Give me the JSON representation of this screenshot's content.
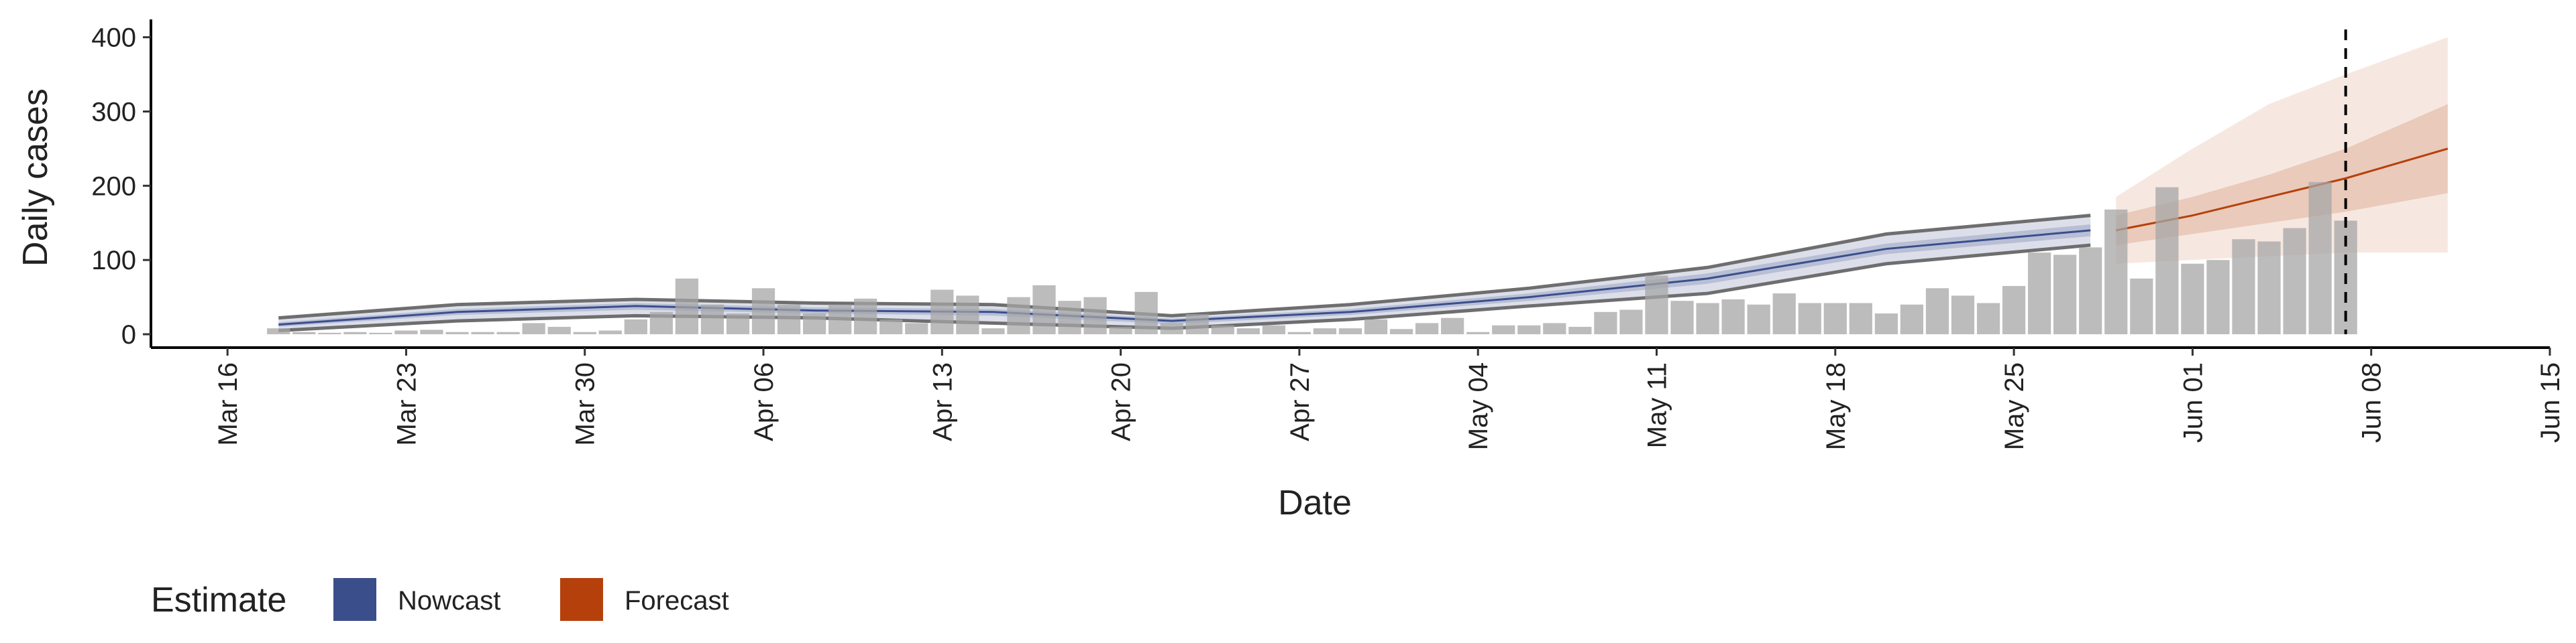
{
  "chart_data": {
    "type": "bar",
    "x_label": "Date",
    "y_label": "Daily cases",
    "legend_title": "Estimate",
    "color": "#a6a6a6",
    "x": [
      "03-18",
      "03-19",
      "03-20",
      "03-21",
      "03-22",
      "03-23",
      "03-24",
      "03-25",
      "03-26",
      "03-27",
      "03-28",
      "03-29",
      "03-30",
      "03-31",
      "04-01",
      "04-02",
      "04-03",
      "04-04",
      "04-05",
      "04-06",
      "04-07",
      "04-08",
      "04-09",
      "04-10",
      "04-11",
      "04-12",
      "04-13",
      "04-14",
      "04-15",
      "04-16",
      "04-17",
      "04-18",
      "04-19",
      "04-20",
      "04-21",
      "04-22",
      "04-23",
      "04-24",
      "04-25",
      "04-26",
      "04-27",
      "04-28",
      "04-29",
      "04-30",
      "05-01",
      "05-02",
      "05-03",
      "05-04",
      "05-05",
      "05-06",
      "05-07",
      "05-08",
      "05-09",
      "05-10",
      "05-11",
      "05-12",
      "05-13",
      "05-14",
      "05-15",
      "05-16",
      "05-17",
      "05-18",
      "05-19",
      "05-20",
      "05-21",
      "05-22",
      "05-23",
      "05-24",
      "05-25",
      "05-26",
      "05-27",
      "05-28",
      "05-29",
      "05-30",
      "05-31",
      "06-01",
      "06-02",
      "06-03",
      "06-04",
      "06-05",
      "06-06",
      "06-07"
    ],
    "values": [
      8,
      3,
      2,
      3,
      2,
      5,
      6,
      3,
      3,
      3,
      15,
      10,
      3,
      5,
      20,
      30,
      75,
      40,
      28,
      62,
      40,
      28,
      40,
      48,
      20,
      15,
      60,
      52,
      8,
      50,
      66,
      45,
      50,
      10,
      57,
      15,
      27,
      12,
      8,
      12,
      3,
      8,
      8,
      20,
      7,
      15,
      22,
      3,
      12,
      12,
      15,
      10,
      30,
      33,
      79,
      45,
      42,
      47,
      40,
      55,
      42,
      42,
      42,
      28,
      40,
      62,
      52,
      42,
      65,
      110,
      107,
      117,
      168,
      75,
      198,
      95,
      100,
      128,
      125,
      143,
      205,
      153
    ],
    "estimates": [
      {
        "name": "Nowcast",
        "color": "#3b4e8c",
        "x": [
          "03-18",
          "03-25",
          "04-01",
          "04-08",
          "04-15",
          "04-22",
          "04-29",
          "05-06",
          "05-13",
          "05-20",
          "05-28"
        ],
        "median": [
          13,
          30,
          38,
          32,
          30,
          18,
          30,
          50,
          75,
          115,
          140
        ],
        "lower_50": [
          10,
          26,
          33,
          28,
          25,
          14,
          26,
          45,
          68,
          108,
          132
        ],
        "upper_50": [
          16,
          34,
          42,
          36,
          34,
          21,
          34,
          55,
          82,
          122,
          148
        ],
        "lower_90": [
          5,
          18,
          25,
          22,
          15,
          8,
          20,
          38,
          55,
          95,
          120
        ],
        "upper_90": [
          22,
          40,
          47,
          42,
          40,
          25,
          40,
          62,
          90,
          135,
          160
        ]
      },
      {
        "name": "Forecast",
        "color": "#b5400c",
        "x": [
          "05-29",
          "06-01",
          "06-04",
          "06-07",
          "06-11"
        ],
        "median": [
          140,
          160,
          185,
          210,
          250
        ],
        "lower_50": [
          120,
          135,
          150,
          165,
          190
        ],
        "upper_50": [
          160,
          185,
          215,
          250,
          310
        ],
        "lower_90": [
          95,
          100,
          105,
          110,
          110
        ],
        "upper_90": [
          185,
          250,
          310,
          350,
          400
        ]
      }
    ],
    "vline": "06-07",
    "xlim": [
      "03-13",
      "06-15"
    ],
    "xticks": [
      {
        "value": "03-16",
        "label": "Mar 16"
      },
      {
        "value": "03-23",
        "label": "Mar 23"
      },
      {
        "value": "03-30",
        "label": "Mar 30"
      },
      {
        "value": "04-06",
        "label": "Apr 06"
      },
      {
        "value": "04-13",
        "label": "Apr 13"
      },
      {
        "value": "04-20",
        "label": "Apr 20"
      },
      {
        "value": "04-27",
        "label": "Apr 27"
      },
      {
        "value": "05-04",
        "label": "May 04"
      },
      {
        "value": "05-11",
        "label": "May 11"
      },
      {
        "value": "05-18",
        "label": "May 18"
      },
      {
        "value": "05-25",
        "label": "May 25"
      },
      {
        "value": "06-01",
        "label": "Jun 01"
      },
      {
        "value": "06-08",
        "label": "Jun 08"
      },
      {
        "value": "06-15",
        "label": "Jun 15"
      }
    ],
    "ylim": [
      -18,
      424
    ],
    "yticks": [
      0,
      100,
      200,
      300,
      400
    ]
  }
}
